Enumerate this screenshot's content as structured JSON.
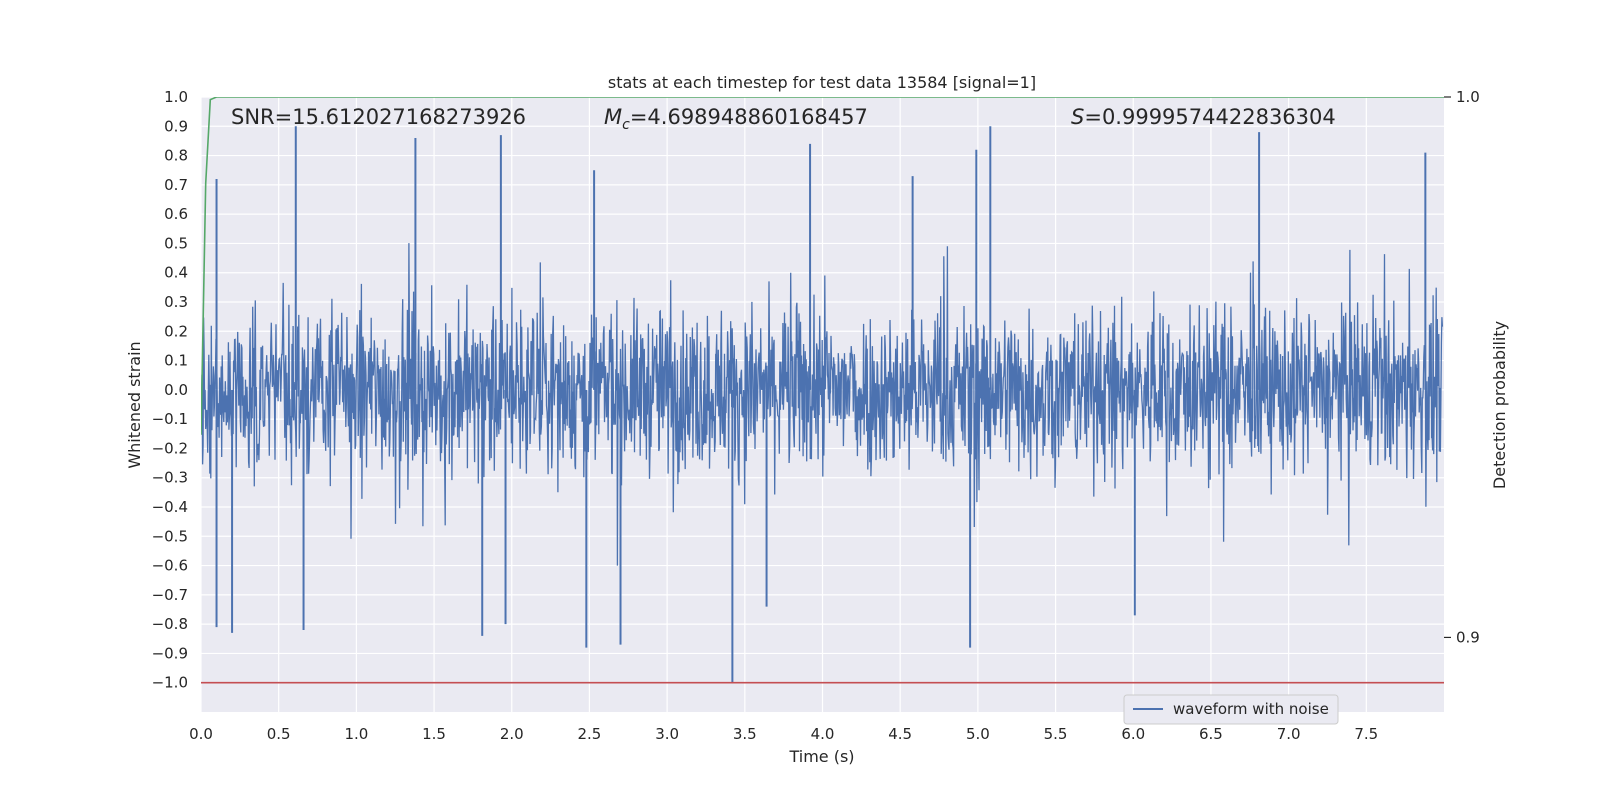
{
  "chart_data": {
    "type": "line",
    "title": "stats at each timestep for test data 13584 [signal=1]",
    "xlabel": "Time (s)",
    "ylabel": "Whitened strain",
    "y2label": "Detection probability",
    "xlim": [
      0.0,
      8.0
    ],
    "ylim": [
      -1.1,
      1.0
    ],
    "y2lim": [
      0.8862,
      1.0
    ],
    "xticks": [
      "0.0",
      "0.5",
      "1.0",
      "1.5",
      "2.0",
      "2.5",
      "3.0",
      "3.5",
      "4.0",
      "4.5",
      "5.0",
      "5.5",
      "6.0",
      "6.5",
      "7.0",
      "7.5"
    ],
    "yticks": [
      "1.0",
      "0.9",
      "0.8",
      "0.7",
      "0.6",
      "0.5",
      "0.4",
      "0.3",
      "0.2",
      "0.1",
      "0.0",
      "−0.1",
      "−0.2",
      "−0.3",
      "−0.4",
      "−0.5",
      "−0.6",
      "−0.7",
      "−0.8",
      "−0.9",
      "−1.0"
    ],
    "y2ticks": [
      "1.0",
      "0.9"
    ],
    "grid": true,
    "legend": {
      "placement": "lower-right",
      "entries": [
        "waveform with noise"
      ]
    },
    "annotations": {
      "snr": "SNR=15.612027168273926",
      "mc_symbol": "M",
      "mc_sub": "c",
      "mc_value": "=4.698948860168457",
      "s_symbol": "S",
      "s_value": "=0.9999574422836304"
    },
    "series": [
      {
        "name": "waveform with noise",
        "axis": "left",
        "color": "#4c72b0",
        "render": "noise-band",
        "x_range": [
          0.0,
          7.99
        ],
        "core_amplitude": 0.3,
        "peaks": [
          {
            "x": 0.61,
            "y": 0.9
          },
          {
            "x": 1.38,
            "y": 0.86
          },
          {
            "x": 1.93,
            "y": 0.87
          },
          {
            "x": 3.92,
            "y": 0.84
          },
          {
            "x": 4.99,
            "y": 0.82
          },
          {
            "x": 5.08,
            "y": 0.9
          },
          {
            "x": 6.81,
            "y": 0.88
          },
          {
            "x": 7.88,
            "y": 0.81
          },
          {
            "x": 0.1,
            "y": 0.72
          },
          {
            "x": 2.53,
            "y": 0.75
          },
          {
            "x": 4.58,
            "y": 0.73
          }
        ],
        "troughs": [
          {
            "x": 0.2,
            "y": -0.83
          },
          {
            "x": 0.66,
            "y": -0.82
          },
          {
            "x": 1.81,
            "y": -0.84
          },
          {
            "x": 1.96,
            "y": -0.8
          },
          {
            "x": 2.48,
            "y": -0.88
          },
          {
            "x": 2.7,
            "y": -0.87
          },
          {
            "x": 3.42,
            "y": -1.0
          },
          {
            "x": 3.64,
            "y": -0.74
          },
          {
            "x": 4.95,
            "y": -0.88
          },
          {
            "x": 6.01,
            "y": -0.77
          },
          {
            "x": 0.1,
            "y": -0.81
          }
        ]
      },
      {
        "name": "",
        "axis": "right",
        "color": "#55a868",
        "x": [
          0.0,
          0.03,
          0.06,
          0.1,
          0.3,
          8.0
        ],
        "y": [
          0.9375,
          0.984,
          0.9995,
          1.0,
          1.0,
          1.0
        ]
      },
      {
        "name": "",
        "axis": "left",
        "color": "#c44e52",
        "x": [
          0.0,
          8.0
        ],
        "y": [
          -1.0,
          -1.0
        ]
      }
    ]
  }
}
